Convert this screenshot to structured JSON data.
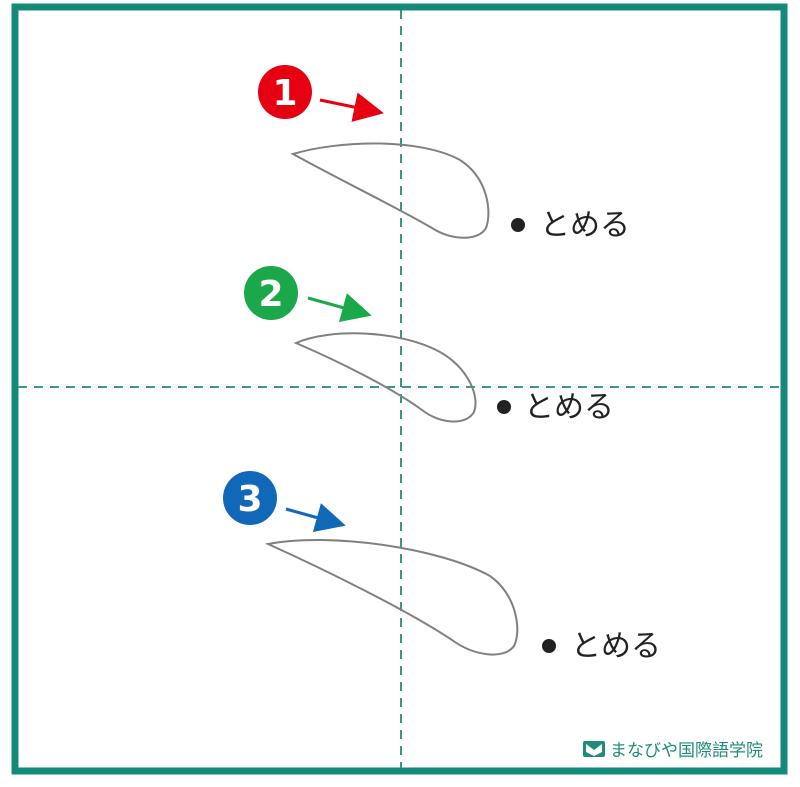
{
  "colors": {
    "frame": "#148a78",
    "guide": "#1e8c7a",
    "stroke_outline": "#808080",
    "step1": "#e60012",
    "step2": "#1aa84a",
    "step3": "#1168b8",
    "text": "#222222"
  },
  "steps": [
    {
      "number": "1",
      "color_name": "red",
      "label": "とめる"
    },
    {
      "number": "2",
      "color_name": "green",
      "label": "とめる"
    },
    {
      "number": "3",
      "color_name": "blue",
      "label": "とめる"
    }
  ],
  "brand": {
    "logo_icon": "book-logo-icon",
    "name": "まなびや国際語学院"
  }
}
